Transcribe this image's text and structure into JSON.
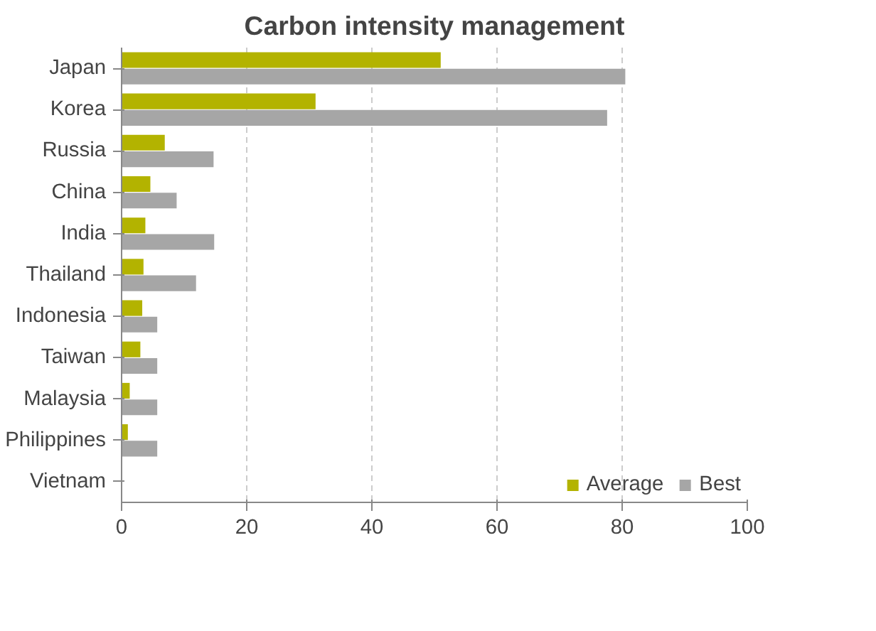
{
  "chart_data": {
    "type": "bar",
    "orientation": "horizontal",
    "title": "Carbon intensity management",
    "categories": [
      "Japan",
      "Korea",
      "Russia",
      "China",
      "India",
      "Thailand",
      "Indonesia",
      "Taiwan",
      "Malaysia",
      "Philippines",
      "Vietnam"
    ],
    "series": [
      {
        "name": "Average",
        "color": "#b3b300",
        "values": [
          51,
          31,
          6.9,
          4.6,
          3.8,
          3.5,
          3.3,
          3.0,
          1.3,
          1.0,
          0
        ]
      },
      {
        "name": "Best",
        "color": "#a6a6a6",
        "values": [
          80.5,
          77.6,
          14.7,
          8.8,
          14.8,
          11.9,
          5.7,
          5.7,
          5.7,
          5.7,
          0
        ]
      }
    ],
    "xlim": [
      0,
      100
    ],
    "xticks": [
      0,
      20,
      40,
      60,
      80,
      100
    ],
    "grid": "x",
    "legend": "bottom right"
  }
}
